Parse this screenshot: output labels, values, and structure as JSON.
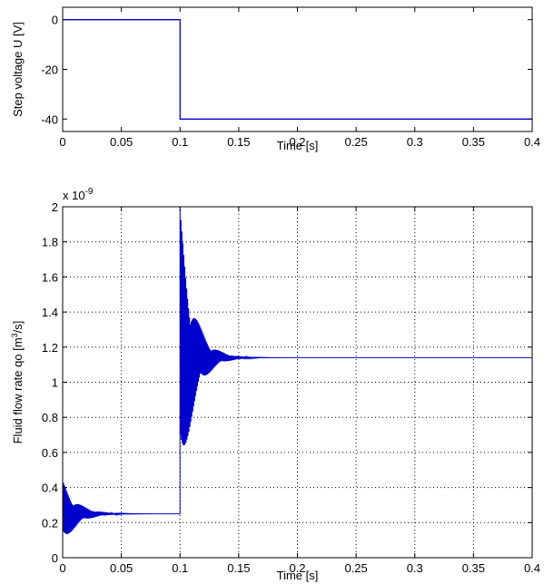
{
  "chart_data": [
    {
      "type": "line",
      "title": "",
      "xlabel": "Time [s]",
      "ylabel": "Step voltage U [V]",
      "xlim": [
        0,
        0.4
      ],
      "ylim": [
        -45,
        5
      ],
      "xticks": [
        0,
        0.05,
        0.1,
        0.15,
        0.2,
        0.25,
        0.3,
        0.35,
        0.4
      ],
      "xtick_labels": [
        "0",
        "0.05",
        "0.1",
        "0.15",
        "0.2",
        "0.25",
        "0.3",
        "0.35",
        "0.4"
      ],
      "yticks": [
        -40,
        -20,
        0
      ],
      "ytick_labels": [
        "-40",
        "-20",
        "0"
      ],
      "grid": false,
      "series": [
        {
          "color": "#0000cc",
          "x": [
            0,
            0.1,
            0.1,
            0.4
          ],
          "y": [
            0,
            0,
            -40,
            -40
          ]
        }
      ]
    },
    {
      "type": "line",
      "title": "",
      "xlabel": "Time [s]",
      "ylabel_prefix": "Fluid flow rate qo [m",
      "ylabel_sup": "3",
      "ylabel_suffix": "/s]",
      "exponent_base": "x 10",
      "exponent_power": "-9",
      "xlim": [
        0,
        0.4
      ],
      "ylim": [
        0,
        2
      ],
      "xticks": [
        0,
        0.05,
        0.1,
        0.15,
        0.2,
        0.25,
        0.3,
        0.35,
        0.4
      ],
      "xtick_labels": [
        "0",
        "0.05",
        "0.1",
        "0.15",
        "0.2",
        "0.25",
        "0.3",
        "0.35",
        "0.4"
      ],
      "yticks": [
        0,
        0.2,
        0.4,
        0.6,
        0.8,
        1,
        1.2,
        1.4,
        1.6,
        1.8,
        2
      ],
      "ytick_labels": [
        "0",
        "0.2",
        "0.4",
        "0.6",
        "0.8",
        "1",
        "1.2",
        "1.4",
        "1.6",
        "1.8",
        "2"
      ],
      "grid": true,
      "series": [
        {
          "color": "#0000cc",
          "segments": [
            {
              "t_start": 0,
              "t_end": 0.1,
              "steady": 0.25,
              "initial_dev": 0.19,
              "decay_time": 0.012,
              "period": 0.0008
            },
            {
              "t_start": 0.1,
              "t_end": 0.4,
              "steady": 1.14,
              "initial_dev": 0.85,
              "decay_time": 0.011,
              "period": 0.0008
            }
          ]
        }
      ]
    }
  ]
}
